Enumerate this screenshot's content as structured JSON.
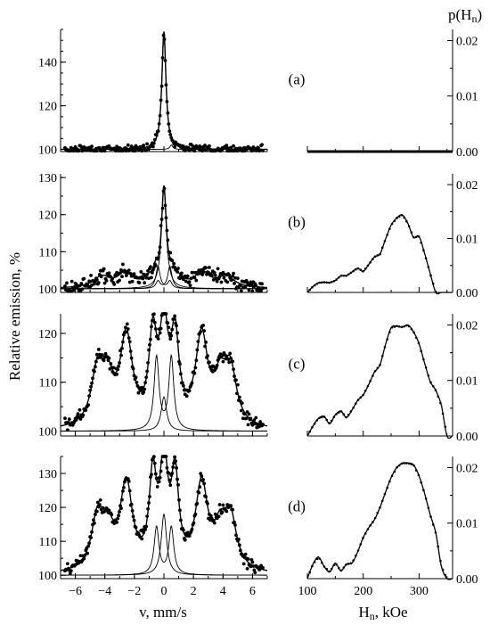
{
  "figure": {
    "left_ylabel": "Relative emission, %",
    "left_xlabel": "v, mm/s",
    "right_ylabel_main": "p(H",
    "right_ylabel_sub": "n",
    "right_ylabel_close": ")",
    "right_xlabel_main": "H",
    "right_xlabel_sub": "n",
    "right_xlabel_unit": ", kOe"
  },
  "chart_data": [
    {
      "type": "scatter",
      "panel": "a",
      "label": "(a)",
      "xlim": [
        -7,
        7
      ],
      "ylim": [
        99,
        155
      ],
      "yticks": [
        100,
        120,
        140
      ],
      "xticks": [
        -6,
        -4,
        -2,
        0,
        2,
        4,
        6
      ],
      "baseline": 100,
      "peaks": [
        {
          "center": 0,
          "width": 0.17,
          "amp": 54
        }
      ],
      "components": [
        {
          "name": "central-line",
          "peaks": [
            {
              "center": 0,
              "width": 0.17,
              "amp": 52
            }
          ]
        },
        {
          "name": "side-line",
          "peaks": [
            {
              "center": 0.5,
              "width": 0.12,
              "amp": 2
            }
          ]
        }
      ],
      "noise": 0.9
    },
    {
      "type": "scatter",
      "panel": "b",
      "label": "(b)",
      "xlim": [
        -7,
        7
      ],
      "ylim": [
        99,
        131
      ],
      "yticks": [
        100,
        110,
        120,
        130
      ],
      "xticks": [
        -6,
        -4,
        -2,
        0,
        2,
        4,
        6
      ],
      "baseline": 100,
      "peaks": [
        {
          "center": 0,
          "width": 0.2,
          "amp": 26
        },
        {
          "center": -0.55,
          "width": 0.18,
          "amp": 3
        },
        {
          "center": 0.55,
          "width": 0.18,
          "amp": 3
        },
        {
          "center": -4.2,
          "width": 0.7,
          "amp": 3
        },
        {
          "center": -2.6,
          "width": 0.6,
          "amp": 4
        },
        {
          "center": -1.0,
          "width": 0.45,
          "amp": 2
        },
        {
          "center": 1.0,
          "width": 0.45,
          "amp": 2
        },
        {
          "center": 2.6,
          "width": 0.6,
          "amp": 4
        },
        {
          "center": 4.2,
          "width": 0.7,
          "amp": 3
        }
      ],
      "components": [
        {
          "name": "central-line",
          "peaks": [
            {
              "center": 0,
              "width": 0.2,
              "amp": 27
            }
          ]
        },
        {
          "name": "doublet-left",
          "peaks": [
            {
              "center": -0.4,
              "width": 0.17,
              "amp": 6
            },
            {
              "center": 0.4,
              "width": 0.17,
              "amp": 2
            }
          ]
        },
        {
          "name": "doublet-right",
          "peaks": [
            {
              "center": 0.4,
              "width": 0.17,
              "amp": 6
            },
            {
              "center": -0.4,
              "width": 0.17,
              "amp": 2
            }
          ]
        }
      ],
      "noise": 0.9
    },
    {
      "type": "scatter",
      "panel": "c",
      "label": "(c)",
      "xlim": [
        -7,
        7
      ],
      "ylim": [
        99,
        124
      ],
      "yticks": [
        100,
        110,
        120
      ],
      "xticks": [
        -6,
        -4,
        -2,
        0,
        2,
        4,
        6
      ],
      "baseline": 100,
      "peaks": [
        {
          "center": -4.5,
          "width": 0.5,
          "amp": 11
        },
        {
          "center": -3.8,
          "width": 0.5,
          "amp": 8
        },
        {
          "center": -2.55,
          "width": 0.5,
          "amp": 18
        },
        {
          "center": -0.75,
          "width": 0.32,
          "amp": 17
        },
        {
          "center": 0,
          "width": 0.35,
          "amp": 19
        },
        {
          "center": 0.75,
          "width": 0.32,
          "amp": 17
        },
        {
          "center": 2.55,
          "width": 0.5,
          "amp": 18
        },
        {
          "center": 3.8,
          "width": 0.5,
          "amp": 8
        },
        {
          "center": 4.5,
          "width": 0.5,
          "amp": 11
        }
      ],
      "components": [
        {
          "name": "central-line",
          "peaks": [
            {
              "center": 0,
              "width": 0.22,
              "amp": 7
            }
          ]
        },
        {
          "name": "doublet",
          "peaks": [
            {
              "center": -0.5,
              "width": 0.2,
              "amp": 15
            },
            {
              "center": 0.5,
              "width": 0.2,
              "amp": 15
            }
          ]
        }
      ],
      "noise": 0.7
    },
    {
      "type": "scatter",
      "panel": "d",
      "label": "(d)",
      "xlim": [
        -7,
        7
      ],
      "ylim": [
        99,
        135
      ],
      "yticks": [
        100,
        110,
        120,
        130
      ],
      "xticks": [
        -6,
        -4,
        -2,
        0,
        2,
        4,
        6
      ],
      "baseline": 100,
      "peaks": [
        {
          "center": -4.5,
          "width": 0.5,
          "amp": 15
        },
        {
          "center": -3.8,
          "width": 0.5,
          "amp": 10
        },
        {
          "center": -2.55,
          "width": 0.5,
          "amp": 25
        },
        {
          "center": -0.75,
          "width": 0.3,
          "amp": 26
        },
        {
          "center": 0,
          "width": 0.32,
          "amp": 30
        },
        {
          "center": 0.75,
          "width": 0.3,
          "amp": 26
        },
        {
          "center": 2.55,
          "width": 0.5,
          "amp": 25
        },
        {
          "center": 3.8,
          "width": 0.5,
          "amp": 10
        },
        {
          "center": 4.5,
          "width": 0.5,
          "amp": 15
        }
      ],
      "components": [
        {
          "name": "central-line",
          "peaks": [
            {
              "center": 0,
              "width": 0.22,
              "amp": 18
            }
          ]
        },
        {
          "name": "doublet",
          "peaks": [
            {
              "center": -0.5,
              "width": 0.2,
              "amp": 14
            },
            {
              "center": 0.5,
              "width": 0.2,
              "amp": 14
            }
          ]
        }
      ],
      "noise": 0.9
    },
    {
      "type": "line",
      "panel": "a-dist",
      "xlim": [
        100,
        360
      ],
      "ylim": [
        0,
        0.022
      ],
      "yticks": [
        "0.00",
        "0.01",
        "0.02"
      ],
      "x": [
        100,
        360
      ],
      "y": [
        0,
        0
      ]
    },
    {
      "type": "line",
      "panel": "b-dist",
      "xlim": [
        100,
        360
      ],
      "ylim": [
        0,
        0.022
      ],
      "yticks": [
        "0.00",
        "0.01",
        "0.02"
      ],
      "x": [
        100,
        110,
        120,
        130,
        140,
        150,
        160,
        170,
        180,
        190,
        200,
        210,
        220,
        230,
        240,
        250,
        260,
        270,
        280,
        290,
        300,
        310,
        320,
        330,
        340,
        350,
        360
      ],
      "y": [
        0,
        0.0011,
        0.0018,
        0.0019,
        0.0018,
        0.0022,
        0.0031,
        0.0031,
        0.0038,
        0.0045,
        0.0039,
        0.0052,
        0.0066,
        0.0071,
        0.0099,
        0.0125,
        0.0138,
        0.0144,
        0.0128,
        0.0102,
        0.0104,
        0.0072,
        0.0035,
        0,
        0,
        0,
        0
      ]
    },
    {
      "type": "line",
      "panel": "c-dist",
      "xlim": [
        100,
        360
      ],
      "ylim": [
        0,
        0.022
      ],
      "yticks": [
        "0.00",
        "0.01",
        "0.02"
      ],
      "x": [
        100,
        110,
        120,
        130,
        140,
        150,
        160,
        170,
        180,
        190,
        200,
        210,
        220,
        230,
        240,
        250,
        260,
        270,
        280,
        290,
        300,
        310,
        320,
        330,
        340,
        350,
        360
      ],
      "y": [
        0,
        0.0018,
        0.0032,
        0.0035,
        0.0022,
        0.0038,
        0.0045,
        0.0033,
        0.0047,
        0.0064,
        0.0074,
        0.0093,
        0.0115,
        0.0128,
        0.0165,
        0.0195,
        0.0198,
        0.0196,
        0.02,
        0.0188,
        0.0166,
        0.0131,
        0.0098,
        0.0082,
        0.0055,
        0,
        0
      ]
    },
    {
      "type": "line",
      "panel": "d-dist",
      "xlim": [
        100,
        360
      ],
      "ylim": [
        0,
        0.022
      ],
      "yticks": [
        "0.00",
        "0.01",
        "0.02"
      ],
      "x": [
        100,
        110,
        120,
        130,
        140,
        150,
        160,
        170,
        180,
        190,
        200,
        210,
        220,
        230,
        240,
        250,
        260,
        270,
        280,
        290,
        300,
        310,
        320,
        330,
        340,
        350,
        360
      ],
      "y": [
        0,
        0.0026,
        0.0039,
        0.0022,
        0.0012,
        0.0028,
        0.0014,
        0.0026,
        0.0028,
        0.0048,
        0.0074,
        0.0092,
        0.0106,
        0.0128,
        0.0156,
        0.0182,
        0.02,
        0.0208,
        0.0208,
        0.0205,
        0.0185,
        0.0153,
        0.0115,
        0.0082,
        0.0022,
        0,
        0
      ]
    }
  ],
  "right_xticks": [
    100,
    200,
    300
  ],
  "left_xticks_shown": [
    "−6",
    "−4",
    "−2",
    "0",
    "2",
    "4",
    "6"
  ]
}
